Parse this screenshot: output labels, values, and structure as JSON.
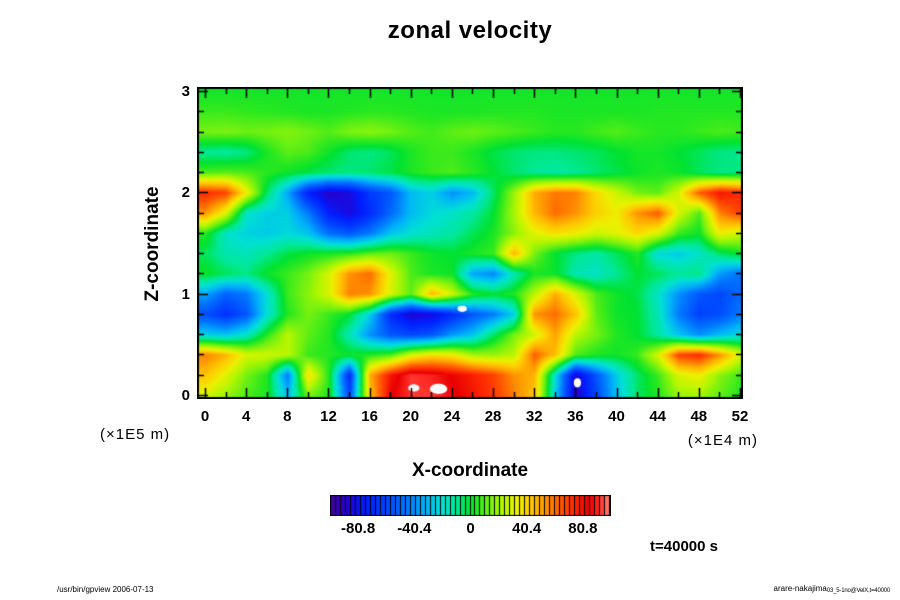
{
  "title": "zonal velocity",
  "axes": {
    "x_label": "X-coordinate",
    "x_unit": "(×1E4 m)",
    "x_tick_labels": [
      "0",
      "4",
      "8",
      "12",
      "16",
      "20",
      "24",
      "28",
      "32",
      "36",
      "40",
      "44",
      "48",
      "52"
    ],
    "x_tick_values": [
      0,
      4,
      8,
      12,
      16,
      20,
      24,
      28,
      32,
      36,
      40,
      44,
      48,
      52
    ],
    "y_label": "Z-coordinate",
    "y_unit": "(×1E5 m)",
    "y_tick_labels": [
      "0",
      "1",
      "2",
      "3"
    ],
    "y_tick_values": [
      0,
      1,
      2,
      3
    ]
  },
  "colorbar": {
    "tick_labels": [
      "-80.8",
      "-40.4",
      "0",
      "40.4",
      "80.8"
    ],
    "tick_values": [
      -80.8,
      -40.4,
      0,
      40.4,
      80.8
    ],
    "min": -101,
    "max": 101,
    "segments": 56
  },
  "annotations": {
    "time": "t=40000 s",
    "footer_left": "/usr/bin/gpview 2006-07-13",
    "footer_right_main": "arare-nakajima",
    "footer_right_sub": "03_5-1no@VelX,t=40000"
  },
  "chart_data": {
    "type": "heatmap",
    "title": "zonal velocity",
    "xlabel": "X-coordinate",
    "ylabel": "Z-coordinate",
    "x_range": [
      0,
      52
    ],
    "z_range": [
      0,
      3.05
    ],
    "x_step": 2,
    "z_rows_top_to_bottom": [
      3.0,
      2.8,
      2.6,
      2.4,
      2.2,
      2.0,
      1.8,
      1.6,
      1.4,
      1.2,
      1.0,
      0.8,
      0.6,
      0.4,
      0.2,
      0.0
    ],
    "values": [
      [
        3,
        3,
        3,
        3,
        3,
        3,
        3,
        3,
        3,
        3,
        3,
        3,
        3,
        3,
        3,
        3,
        3,
        3,
        3,
        3,
        3,
        3,
        3,
        3,
        3,
        3,
        3
      ],
      [
        8,
        8,
        7,
        6,
        5,
        4,
        4,
        5,
        6,
        6,
        5,
        4,
        4,
        4,
        5,
        5,
        5,
        4,
        4,
        4,
        4,
        4,
        5,
        5,
        5,
        5,
        5
      ],
      [
        15,
        16,
        14,
        15,
        17,
        14,
        11,
        16,
        18,
        15,
        11,
        9,
        12,
        14,
        12,
        10,
        8,
        6,
        6,
        9,
        11,
        8,
        6,
        6,
        8,
        10,
        9
      ],
      [
        -10,
        -12,
        -8,
        4,
        12,
        10,
        2,
        -6,
        -8,
        -4,
        4,
        8,
        8,
        4,
        -2,
        -6,
        -8,
        -8,
        -6,
        -4,
        0,
        3,
        3,
        0,
        -4,
        -8,
        -9
      ],
      [
        10,
        12,
        10,
        6,
        2,
        -2,
        -6,
        -8,
        -6,
        -2,
        4,
        8,
        10,
        6,
        0,
        -6,
        -10,
        -12,
        -10,
        -6,
        -2,
        2,
        4,
        2,
        -4,
        -8,
        -8
      ],
      [
        75,
        70,
        35,
        -5,
        -35,
        -75,
        -90,
        -85,
        -65,
        -55,
        -30,
        -25,
        -40,
        -30,
        -5,
        20,
        50,
        60,
        58,
        40,
        28,
        15,
        12,
        30,
        65,
        80,
        75
      ],
      [
        55,
        30,
        -18,
        -25,
        -25,
        -45,
        -75,
        -85,
        -70,
        -50,
        -30,
        -22,
        -18,
        -12,
        0,
        22,
        48,
        62,
        55,
        42,
        35,
        55,
        65,
        30,
        10,
        58,
        70
      ],
      [
        5,
        -18,
        -24,
        -26,
        -22,
        -28,
        -48,
        -55,
        -45,
        -28,
        -20,
        -16,
        -12,
        -4,
        4,
        18,
        32,
        38,
        35,
        28,
        32,
        40,
        30,
        8,
        2,
        35,
        28
      ],
      [
        -4,
        -14,
        -16,
        -10,
        -2,
        2,
        4,
        6,
        12,
        14,
        8,
        2,
        0,
        4,
        8,
        48,
        15,
        0,
        -8,
        -12,
        -4,
        5,
        -22,
        -26,
        -18,
        -5,
        2
      ],
      [
        2,
        -4,
        -8,
        2,
        8,
        15,
        30,
        55,
        62,
        32,
        10,
        4,
        2,
        -35,
        -42,
        -15,
        4,
        2,
        -15,
        -18,
        -10,
        0,
        -4,
        -10,
        -8,
        -38,
        -48
      ],
      [
        -35,
        -52,
        -45,
        -20,
        8,
        18,
        30,
        58,
        55,
        30,
        12,
        48,
        28,
        5,
        0,
        5,
        25,
        50,
        30,
        10,
        2,
        -2,
        -18,
        -40,
        -55,
        -60,
        -50
      ],
      [
        -58,
        -68,
        -55,
        -20,
        5,
        15,
        8,
        0,
        -25,
        -70,
        -88,
        -85,
        -70,
        -55,
        -45,
        -25,
        55,
        62,
        45,
        12,
        2,
        0,
        -15,
        -45,
        -62,
        -58,
        -45
      ],
      [
        -25,
        -28,
        -18,
        5,
        25,
        12,
        5,
        -15,
        -40,
        -55,
        -60,
        -55,
        -38,
        -28,
        -5,
        15,
        28,
        52,
        25,
        15,
        5,
        0,
        -12,
        -28,
        -40,
        -30,
        -22
      ],
      [
        58,
        48,
        30,
        28,
        25,
        8,
        5,
        2,
        5,
        10,
        30,
        38,
        35,
        22,
        20,
        25,
        65,
        45,
        10,
        4,
        2,
        8,
        30,
        70,
        75,
        55,
        30
      ],
      [
        45,
        32,
        15,
        5,
        -45,
        40,
        5,
        -70,
        50,
        80,
        95,
        92,
        85,
        78,
        70,
        55,
        48,
        -20,
        -88,
        -55,
        -25,
        -5,
        8,
        30,
        35,
        18,
        8
      ],
      [
        30,
        20,
        10,
        4,
        -30,
        15,
        5,
        -60,
        45,
        85,
        95,
        95,
        88,
        80,
        72,
        58,
        45,
        -25,
        -90,
        -60,
        -28,
        -5,
        5,
        20,
        22,
        12,
        5
      ]
    ],
    "colormap_stops": [
      [
        -101,
        68,
        0,
        156
      ],
      [
        -90,
        40,
        0,
        205
      ],
      [
        -75,
        0,
        30,
        255
      ],
      [
        -60,
        0,
        70,
        255
      ],
      [
        -45,
        0,
        122,
        255
      ],
      [
        -32,
        0,
        180,
        248
      ],
      [
        -20,
        0,
        225,
        210
      ],
      [
        -10,
        0,
        232,
        150
      ],
      [
        -3,
        0,
        228,
        80
      ],
      [
        0,
        0,
        226,
        50
      ],
      [
        6,
        40,
        232,
        32
      ],
      [
        14,
        110,
        240,
        18
      ],
      [
        24,
        180,
        246,
        0
      ],
      [
        34,
        236,
        240,
        0
      ],
      [
        44,
        255,
        200,
        0
      ],
      [
        54,
        255,
        152,
        0
      ],
      [
        64,
        255,
        95,
        0
      ],
      [
        75,
        255,
        42,
        0
      ],
      [
        86,
        232,
        0,
        0
      ],
      [
        94,
        255,
        45,
        40
      ],
      [
        101,
        255,
        135,
        118
      ]
    ],
    "white_out_of_range_above": 101,
    "white_specks": [
      {
        "x": 20.3,
        "z": 0.07,
        "rx": 0.55,
        "rz": 0.035
      },
      {
        "x": 22.7,
        "z": 0.06,
        "rx": 0.85,
        "rz": 0.05
      },
      {
        "x": 25.0,
        "z": 0.85,
        "rx": 0.45,
        "rz": 0.03
      },
      {
        "x": 36.2,
        "z": 0.12,
        "rx": 0.35,
        "rz": 0.045
      }
    ]
  }
}
